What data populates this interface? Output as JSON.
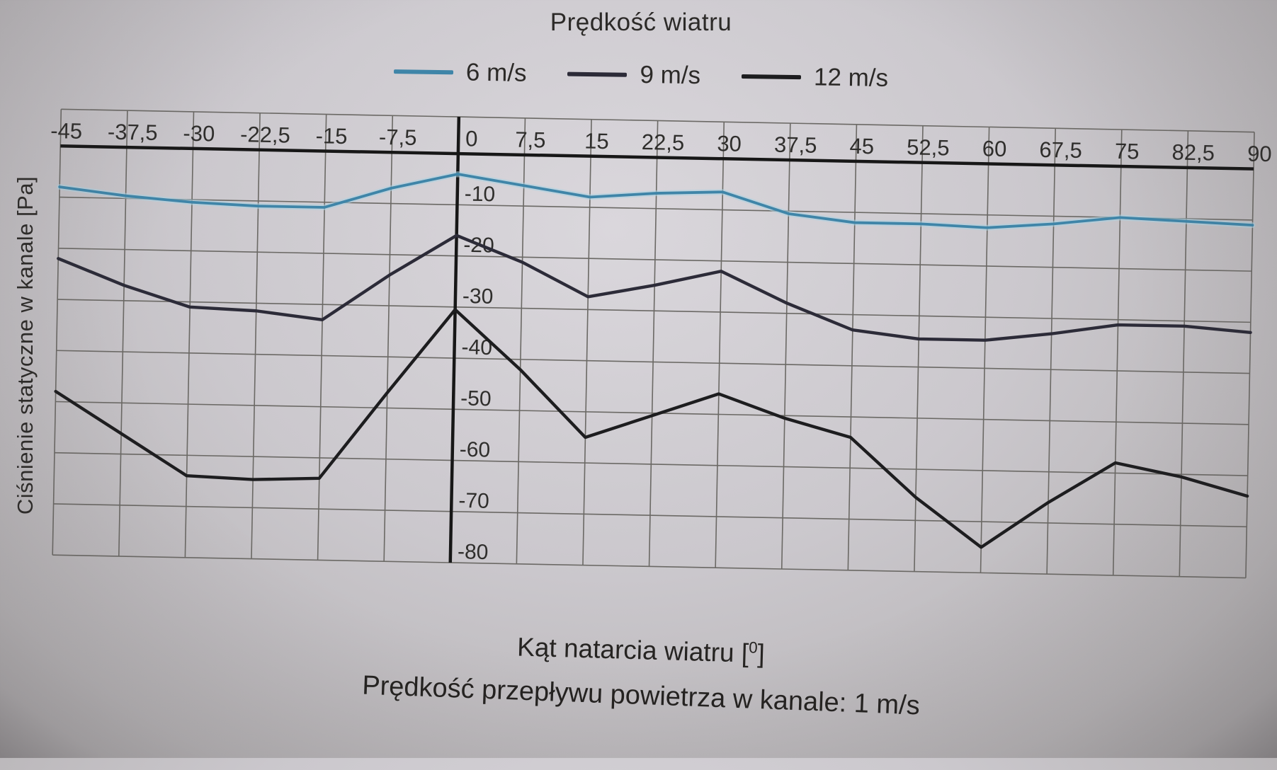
{
  "title": "Prędkość wiatru",
  "legend": [
    {
      "label": "6 m/s",
      "color": "#3f85a8"
    },
    {
      "label": "9 m/s",
      "color": "#2c2b38"
    },
    {
      "label": "12 m/s",
      "color": "#1d1d1f"
    }
  ],
  "axes": {
    "y_title": "Ciśnienie statyczne w kanale [Pa]",
    "x_title_pre": "Kąt natarcia wiatru [",
    "x_title_sup": "0",
    "x_title_post": "]",
    "caption": "Prędkość przepływu powietrza w kanale: 1 m/s"
  },
  "chart_data": {
    "type": "line",
    "title": "Prędkość wiatru",
    "xlabel": "Kąt natarcia wiatru [°]",
    "ylabel": "Ciśnienie statyczne w kanale [Pa]",
    "note": "Prędkość przepływu powietrza w kanale: 1 m/s",
    "legend_position": "top",
    "grid": true,
    "ylim": [
      -80,
      0
    ],
    "x": [
      -45,
      -37.5,
      -30,
      -22.5,
      -15,
      -7.5,
      0,
      7.5,
      15,
      22.5,
      30,
      37.5,
      45,
      52.5,
      60,
      67.5,
      75,
      82.5,
      90
    ],
    "x_tick_labels": [
      "-45",
      "-37,5",
      "-30",
      "-22,5",
      "-15",
      "-7,5",
      "0",
      "7,5",
      "15",
      "22,5",
      "30",
      "37,5",
      "45",
      "52,5",
      "60",
      "67,5",
      "75",
      "82,5",
      "90"
    ],
    "y_tick_labels": [
      "-10",
      "-20",
      "-30",
      "-40",
      "-50",
      "-60",
      "-70",
      "-80"
    ],
    "grid_color": "#6b6965",
    "axis_color": "#171717",
    "label_color": "#2f2e2c",
    "series": [
      {
        "name": "6 m/s",
        "color": "#3f85a8",
        "halo": "#a9d1e2",
        "values": [
          -8,
          -9.5,
          -10.5,
          -11,
          -11,
          -7,
          -4,
          -6,
          -8,
          -7,
          -6.5,
          -10.5,
          -12,
          -12,
          -12.5,
          -11.5,
          -10,
          -10.5,
          -11
        ]
      },
      {
        "name": "9 m/s",
        "color": "#2c2b38",
        "halo": null,
        "values": [
          -22,
          -27,
          -31,
          -31.5,
          -33,
          -24,
          -16,
          -21,
          -27.5,
          -25,
          -22,
          -28,
          -33,
          -34.5,
          -34.5,
          -33,
          -31,
          -31,
          -32
        ]
      },
      {
        "name": "12 m/s",
        "color": "#1d1d1f",
        "halo": null,
        "values": [
          -48,
          -56,
          -64,
          -64.5,
          -64,
          -47,
          -30.5,
          -42,
          -55,
          -50.5,
          -46,
          -50.5,
          -54,
          -65.5,
          -75,
          -66,
          -58,
          -60.5,
          -64
        ]
      }
    ]
  }
}
